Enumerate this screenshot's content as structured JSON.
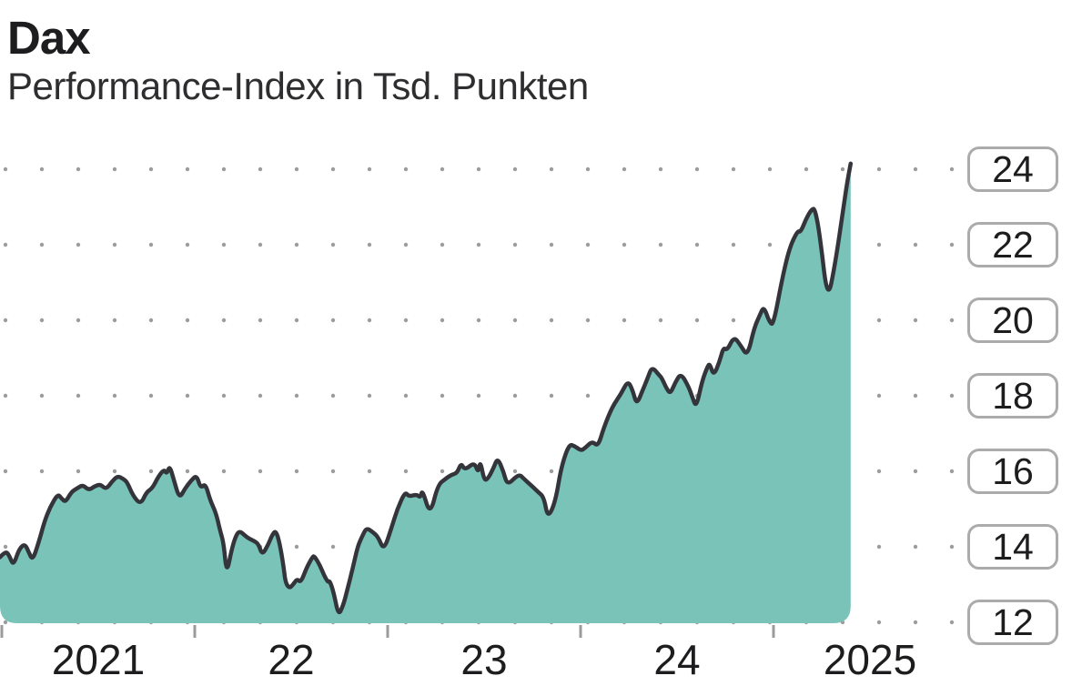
{
  "header": {
    "title": "Dax",
    "subtitle": "Performance-Index in Tsd. Punkten"
  },
  "colors": {
    "area_fill": "#79c3b9",
    "line": "#34353b",
    "grid_dot": "#9c9c9c",
    "axis_tick": "#9b9b9b",
    "box_border": "#ababab",
    "text": "#1d1d1f"
  },
  "chart_data": {
    "type": "area",
    "title": "Dax",
    "subtitle": "Performance-Index in Tsd. Punkten",
    "unit": "Tsd. Punkten",
    "grid": "dotted horizontal lines",
    "legend": "none",
    "x_axis": {
      "range": [
        2020.99,
        2025.41
      ],
      "tick_mark_years": [
        2021,
        2022,
        2023,
        2024,
        2025
      ],
      "tick_labels": [
        "2021",
        "22",
        "23",
        "24",
        "2025"
      ],
      "tick_label_positions": [
        2021.5,
        2022.5,
        2023.5,
        2024.5,
        2025.5
      ]
    },
    "y_axis": {
      "ticks": [
        24,
        22,
        20,
        18,
        16,
        14,
        12
      ],
      "range": [
        12,
        24.3
      ],
      "side": "right",
      "unit": "Tsd. Punkten"
    },
    "series": [
      {
        "name": "Dax Performance-Index",
        "points": [
          [
            2020.99,
            13.72
          ],
          [
            2021.02,
            13.9
          ],
          [
            2021.04,
            13.75
          ],
          [
            2021.06,
            13.5
          ],
          [
            2021.09,
            13.95
          ],
          [
            2021.12,
            14.08
          ],
          [
            2021.14,
            13.85
          ],
          [
            2021.16,
            13.64
          ],
          [
            2021.19,
            14.1
          ],
          [
            2021.22,
            14.65
          ],
          [
            2021.25,
            15.05
          ],
          [
            2021.29,
            15.4
          ],
          [
            2021.31,
            15.28
          ],
          [
            2021.33,
            15.18
          ],
          [
            2021.36,
            15.45
          ],
          [
            2021.39,
            15.55
          ],
          [
            2021.42,
            15.64
          ],
          [
            2021.45,
            15.5
          ],
          [
            2021.48,
            15.6
          ],
          [
            2021.51,
            15.66
          ],
          [
            2021.54,
            15.52
          ],
          [
            2021.57,
            15.72
          ],
          [
            2021.6,
            15.88
          ],
          [
            2021.63,
            15.8
          ],
          [
            2021.65,
            15.71
          ],
          [
            2021.68,
            15.35
          ],
          [
            2021.72,
            15.12
          ],
          [
            2021.75,
            15.45
          ],
          [
            2021.78,
            15.55
          ],
          [
            2021.81,
            15.85
          ],
          [
            2021.84,
            16.05
          ],
          [
            2021.855,
            15.93
          ],
          [
            2021.87,
            16.15
          ],
          [
            2021.89,
            15.8
          ],
          [
            2021.92,
            15.27
          ],
          [
            2021.95,
            15.55
          ],
          [
            2021.98,
            15.75
          ],
          [
            2022.01,
            15.9
          ],
          [
            2022.03,
            15.55
          ],
          [
            2022.055,
            15.68
          ],
          [
            2022.08,
            15.23
          ],
          [
            2022.11,
            14.9
          ],
          [
            2022.13,
            14.45
          ],
          [
            2022.15,
            14.1
          ],
          [
            2022.165,
            13.28
          ],
          [
            2022.19,
            13.9
          ],
          [
            2022.21,
            14.25
          ],
          [
            2022.23,
            14.43
          ],
          [
            2022.26,
            14.3
          ],
          [
            2022.28,
            14.22
          ],
          [
            2022.31,
            14.15
          ],
          [
            2022.33,
            14.07
          ],
          [
            2022.35,
            13.78
          ],
          [
            2022.38,
            14.05
          ],
          [
            2022.4,
            14.3
          ],
          [
            2022.42,
            14.44
          ],
          [
            2022.44,
            14.1
          ],
          [
            2022.46,
            13.5
          ],
          [
            2022.47,
            13.06
          ],
          [
            2022.49,
            12.9
          ],
          [
            2022.51,
            13.0
          ],
          [
            2022.53,
            13.15
          ],
          [
            2022.55,
            13.05
          ],
          [
            2022.58,
            13.45
          ],
          [
            2022.61,
            13.73
          ],
          [
            2022.62,
            13.76
          ],
          [
            2022.65,
            13.5
          ],
          [
            2022.67,
            13.25
          ],
          [
            2022.69,
            13.06
          ],
          [
            2022.7,
            13.1
          ],
          [
            2022.72,
            12.8
          ],
          [
            2022.745,
            12.17
          ],
          [
            2022.77,
            12.45
          ],
          [
            2022.79,
            12.85
          ],
          [
            2022.82,
            13.45
          ],
          [
            2022.845,
            14.02
          ],
          [
            2022.87,
            14.3
          ],
          [
            2022.89,
            14.5
          ],
          [
            2022.92,
            14.4
          ],
          [
            2022.95,
            14.27
          ],
          [
            2022.98,
            13.9
          ],
          [
            2023.02,
            14.5
          ],
          [
            2023.05,
            15.0
          ],
          [
            2023.09,
            15.46
          ],
          [
            2023.11,
            15.33
          ],
          [
            2023.15,
            15.39
          ],
          [
            2023.17,
            15.3
          ],
          [
            2023.18,
            15.52
          ],
          [
            2023.22,
            14.83
          ],
          [
            2023.26,
            15.64
          ],
          [
            2023.3,
            15.8
          ],
          [
            2023.33,
            15.91
          ],
          [
            2023.36,
            15.95
          ],
          [
            2023.38,
            16.22
          ],
          [
            2023.4,
            16.03
          ],
          [
            2023.45,
            16.24
          ],
          [
            2023.47,
            15.95
          ],
          [
            2023.48,
            16.29
          ],
          [
            2023.5,
            15.76
          ],
          [
            2023.52,
            15.8
          ],
          [
            2023.55,
            16.1
          ],
          [
            2023.57,
            16.36
          ],
          [
            2023.6,
            16.0
          ],
          [
            2023.62,
            15.63
          ],
          [
            2023.67,
            15.88
          ],
          [
            2023.69,
            15.89
          ],
          [
            2023.7,
            15.83
          ],
          [
            2023.75,
            15.6
          ],
          [
            2023.78,
            15.45
          ],
          [
            2023.81,
            15.31
          ],
          [
            2023.83,
            14.75
          ],
          [
            2023.87,
            15.2
          ],
          [
            2023.9,
            16.12
          ],
          [
            2023.94,
            16.72
          ],
          [
            2023.97,
            16.67
          ],
          [
            2024.0,
            16.55
          ],
          [
            2024.02,
            16.6
          ],
          [
            2024.06,
            16.8
          ],
          [
            2024.09,
            16.65
          ],
          [
            2024.12,
            17.15
          ],
          [
            2024.165,
            17.72
          ],
          [
            2024.21,
            18.05
          ],
          [
            2024.245,
            18.4
          ],
          [
            2024.27,
            18.15
          ],
          [
            2024.29,
            17.76
          ],
          [
            2024.32,
            18.12
          ],
          [
            2024.35,
            18.5
          ],
          [
            2024.37,
            18.77
          ],
          [
            2024.41,
            18.53
          ],
          [
            2024.42,
            18.48
          ],
          [
            2024.445,
            18.2
          ],
          [
            2024.465,
            18.05
          ],
          [
            2024.49,
            18.35
          ],
          [
            2024.52,
            18.6
          ],
          [
            2024.56,
            18.24
          ],
          [
            2024.58,
            17.95
          ],
          [
            2024.6,
            17.69
          ],
          [
            2024.63,
            18.4
          ],
          [
            2024.66,
            18.8
          ],
          [
            2024.67,
            18.84
          ],
          [
            2024.69,
            18.53
          ],
          [
            2024.72,
            18.9
          ],
          [
            2024.74,
            19.28
          ],
          [
            2024.76,
            19.2
          ],
          [
            2024.795,
            19.57
          ],
          [
            2024.83,
            19.33
          ],
          [
            2024.865,
            19.04
          ],
          [
            2024.9,
            19.8
          ],
          [
            2024.93,
            20.15
          ],
          [
            2024.95,
            20.37
          ],
          [
            2024.98,
            19.93
          ],
          [
            2025.0,
            19.89
          ],
          [
            2025.047,
            21.16
          ],
          [
            2025.085,
            21.95
          ],
          [
            2025.125,
            22.37
          ],
          [
            2025.14,
            22.33
          ],
          [
            2025.17,
            22.7
          ],
          [
            2025.2,
            22.96
          ],
          [
            2025.215,
            22.94
          ],
          [
            2025.24,
            22.26
          ],
          [
            2025.28,
            20.49
          ],
          [
            2025.32,
            21.5
          ],
          [
            2025.36,
            22.9
          ],
          [
            2025.38,
            23.6
          ],
          [
            2025.4,
            24.15
          ]
        ]
      }
    ]
  }
}
